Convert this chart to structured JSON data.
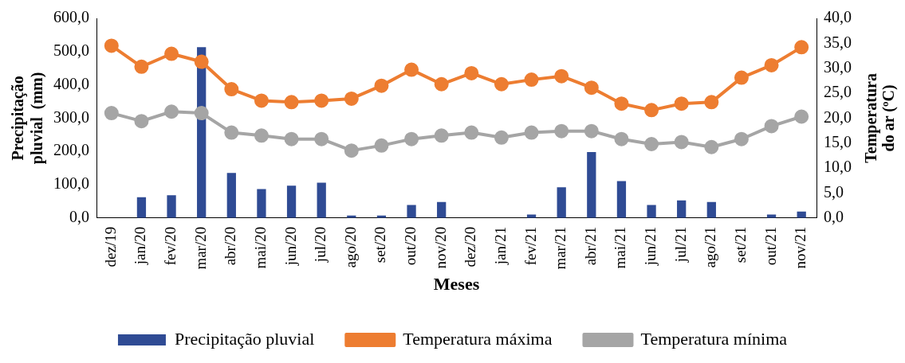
{
  "chart_data": {
    "type": "bar",
    "xlabel": "Meses",
    "ylabel": "Precipitação pluvial  (mm)",
    "y2label": "Temperatura  do ar (ºC)",
    "categories": [
      "dez/19",
      "jan/20",
      "fev/20",
      "mar/20",
      "abr/20",
      "mai/20",
      "jun/20",
      "jul/20",
      "ago/20",
      "set/20",
      "out/20",
      "nov/20",
      "dez/20",
      "jan/21",
      "fev/21",
      "mar/21",
      "abr/21",
      "mai/21",
      "jun/21",
      "jul/21",
      "ago/21",
      "set/21",
      "out/21",
      "nov/21"
    ],
    "series": [
      {
        "name": "Precipitação pluvial",
        "color": "#2f4b94",
        "values": [
          0,
          62,
          68,
          513,
          135,
          87,
          97,
          106,
          7,
          7,
          39,
          48,
          0,
          0,
          10,
          92,
          198,
          111,
          39,
          53,
          48,
          0,
          10,
          19
        ]
      },
      {
        "name": "Temperatura máxima",
        "type": "line",
        "axis": "y2",
        "color": "#ed7d31",
        "values": [
          34.5,
          30.3,
          32.9,
          31.3,
          25.8,
          23.5,
          23.2,
          23.5,
          23.9,
          26.5,
          29.7,
          26.8,
          29.0,
          26.8,
          27.7,
          28.4,
          26.1,
          22.9,
          21.6,
          22.9,
          23.2,
          28.1,
          30.6,
          34.2
        ]
      },
      {
        "name": "Temperatura mínima",
        "type": "line",
        "axis": "y2",
        "color": "#a5a5a5",
        "values": [
          21.0,
          19.4,
          21.3,
          21.0,
          17.1,
          16.5,
          15.8,
          15.8,
          13.5,
          14.5,
          15.8,
          16.5,
          17.1,
          16.1,
          17.1,
          17.4,
          17.4,
          15.8,
          14.8,
          15.2,
          14.2,
          15.8,
          18.4,
          20.3
        ]
      }
    ],
    "ylim": [
      0,
      600
    ],
    "yticks": [
      {
        "value": 0,
        "label": "0,0"
      },
      {
        "value": 100,
        "label": "100,0"
      },
      {
        "value": 200,
        "label": "200,0"
      },
      {
        "value": 300,
        "label": "300,0"
      },
      {
        "value": 400,
        "label": "400,0"
      },
      {
        "value": 500,
        "label": "500,0"
      },
      {
        "value": 600,
        "label": "600,0"
      }
    ],
    "y2lim": [
      0,
      40
    ],
    "y2ticks": [
      {
        "value": 0,
        "label": "0,0"
      },
      {
        "value": 5,
        "label": "5,0"
      },
      {
        "value": 10,
        "label": "10,0"
      },
      {
        "value": 15,
        "label": "15,0"
      },
      {
        "value": 20,
        "label": "20,0"
      },
      {
        "value": 25,
        "label": "25,0"
      },
      {
        "value": 30,
        "label": "30,0"
      },
      {
        "value": 35,
        "label": "35,0"
      },
      {
        "value": 40,
        "label": "40,0"
      }
    ],
    "grid": false,
    "legend": "bottom",
    "marker": "circle"
  }
}
